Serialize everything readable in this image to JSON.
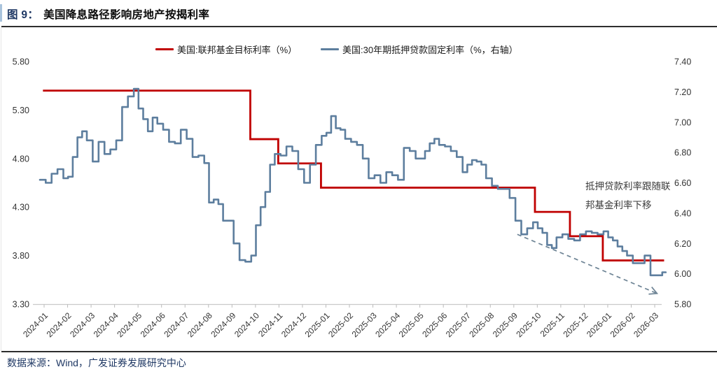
{
  "header": {
    "figure_label": "图 9：",
    "title": "美国降息路径影响房地产按揭利率"
  },
  "footer": {
    "source": "数据来源：Wind，广发证券发展研究中心"
  },
  "colors": {
    "fed_funds_line": "#C00000",
    "mortgage_line": "#5D7E9E",
    "trend_arrow": "#6E8495",
    "navy_text": "#1F3864",
    "axis_text": "#333333",
    "axis_line": "#c9c9c9",
    "tick_mark": "#bbbbbb"
  },
  "chart_data": {
    "type": "line",
    "title": "美国降息路径影响房地产按揭利率",
    "grid": "off",
    "legend_position": "top",
    "x_labels": [
      "2024-01",
      "2024-02",
      "2024-03",
      "2024-04",
      "2024-05",
      "2024-06",
      "2024-07",
      "2024-08",
      "2024-09",
      "2024-10",
      "2024-11",
      "2024-12",
      "2025-01",
      "2025-02",
      "2025-03",
      "2025-04",
      "2025-05",
      "2025-06",
      "2025-07",
      "2025-08",
      "2025-09",
      "2025-10",
      "2025-11",
      "2025-12",
      "2026-01",
      "2026-02",
      "2026-03"
    ],
    "left_axis": {
      "min": 3.3,
      "max": 5.8,
      "ticks": [
        "5.80",
        "5.30",
        "4.80",
        "4.30",
        "3.80",
        "3.30"
      ]
    },
    "right_axis": {
      "min": 5.8,
      "max": 7.4,
      "ticks": [
        "7.40",
        "7.20",
        "7.00",
        "6.80",
        "6.60",
        "6.40",
        "6.20",
        "6.00",
        "5.80"
      ]
    },
    "series": [
      {
        "name": "美国:联邦基金目标利率（%）",
        "axis": "left",
        "color": "#C00000",
        "style": "step",
        "segments": [
          {
            "value": 5.5,
            "from_month": -0.05,
            "to_month": 8.78
          },
          {
            "value": 5.0,
            "from_month": 8.78,
            "to_month": 9.97
          },
          {
            "value": 4.75,
            "from_month": 9.97,
            "to_month": 11.79
          },
          {
            "value": 4.5,
            "from_month": 11.79,
            "to_month": 20.9
          },
          {
            "value": 4.25,
            "from_month": 20.9,
            "to_month": 22.39
          },
          {
            "value": 4.0,
            "from_month": 22.39,
            "to_month": 23.79
          },
          {
            "value": 3.75,
            "from_month": 23.79,
            "to_month": 26.4
          }
        ]
      },
      {
        "name": "美国:30年期抵押贷款固定利率（%，右轴）",
        "axis": "right",
        "color": "#5D7E9E",
        "style": "weekly-step",
        "start_month_offset": -0.18,
        "values_by_month": [
          [
            6.62,
            6.6,
            6.66,
            6.69
          ],
          [
            6.63,
            6.64,
            6.77,
            6.9,
            6.94
          ],
          [
            6.88,
            6.74,
            6.87,
            6.79
          ],
          [
            6.82,
            6.88,
            7.1,
            7.17
          ],
          [
            7.22,
            7.09,
            7.02,
            6.94,
            7.03
          ],
          [
            6.99,
            6.95,
            6.87,
            6.86
          ],
          [
            6.95,
            6.89,
            6.77,
            6.78
          ],
          [
            6.73,
            6.47,
            6.49,
            6.46,
            6.35
          ],
          [
            6.35,
            6.2,
            6.09,
            6.08
          ],
          [
            6.12,
            6.32,
            6.44,
            6.54,
            6.72
          ],
          [
            6.79,
            6.78,
            6.84,
            6.81
          ],
          [
            6.69,
            6.6,
            6.72,
            6.85
          ],
          [
            6.91,
            6.93,
            7.04,
            6.96,
            6.95
          ],
          [
            6.89,
            6.87,
            6.85,
            6.76
          ],
          [
            6.63,
            6.65,
            6.6,
            6.67
          ],
          [
            6.65,
            6.62,
            6.83,
            6.81
          ],
          [
            6.76,
            6.76,
            6.81,
            6.86,
            6.89
          ],
          [
            6.85,
            6.84,
            6.81,
            6.77
          ],
          [
            6.67,
            6.72,
            6.75,
            6.74,
            6.72
          ],
          [
            6.63,
            6.58,
            6.56,
            6.56
          ],
          [
            6.5,
            6.35,
            6.26,
            6.3
          ],
          [
            6.34,
            6.3,
            6.27,
            6.19,
            6.17
          ],
          [
            6.24,
            6.26,
            6.23,
            6.22
          ],
          [
            6.26,
            6.28,
            6.27,
            6.26
          ],
          [
            6.28,
            6.24,
            6.22,
            6.18,
            6.15
          ],
          [
            6.12,
            6.07,
            6.07,
            6.12
          ],
          [
            5.99,
            6.01
          ]
        ]
      }
    ],
    "annotation": {
      "lines": [
        "抵押贷款利率跟随联",
        "邦基金利率下移"
      ]
    },
    "trend_arrow": {
      "dashed": true,
      "from": {
        "month": 20.15,
        "value_right_axis": 6.26
      },
      "to": {
        "month": 26.1,
        "value_right_axis": 5.87
      }
    }
  }
}
